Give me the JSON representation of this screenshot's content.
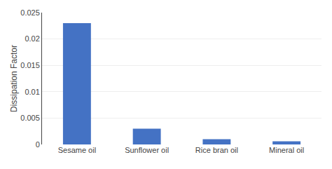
{
  "chart_data": {
    "type": "bar",
    "categories": [
      "Sesame oil",
      "Sunflower oil",
      "Rice bran oil",
      "Mineral oil"
    ],
    "values": [
      0.023,
      0.003,
      0.001,
      0.0006
    ],
    "color": "#4472C4",
    "ylabel": "Dissipation Factor",
    "ylim": [
      0,
      0.025
    ],
    "yticks": [
      0,
      0.005,
      0.01,
      0.015,
      0.02,
      0.025
    ],
    "grid": true
  }
}
